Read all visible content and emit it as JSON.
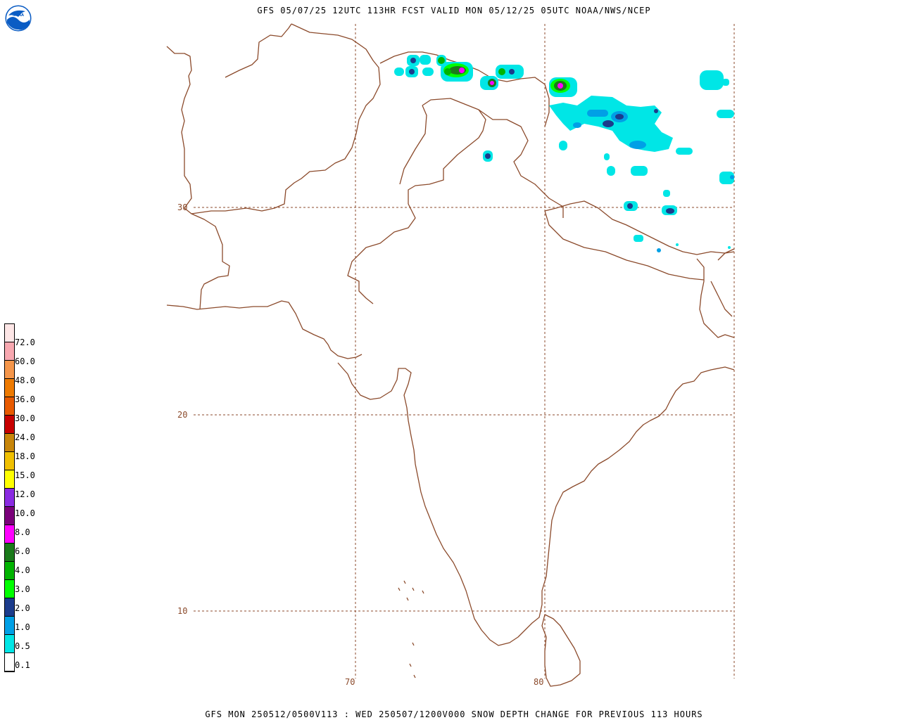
{
  "header": {
    "title": "GFS 05/07/25 12UTC 113HR FCST VALID MON 05/12/25 05UTC NOAA/NWS/NCEP",
    "logo_text": "NOAA"
  },
  "footer": {
    "text": "GFS MON 250512/0500V113 : WED 250507/1200V000 SNOW DEPTH CHANGE FOR PREVIOUS 113 HOURS"
  },
  "map": {
    "lat_labels": [
      "30",
      "20",
      "10"
    ],
    "lon_labels": [
      "70",
      "80"
    ],
    "colors": {
      "border": "#8b4a2b",
      "grid": "#8b4a2b"
    }
  },
  "legend": {
    "labels": [
      "72.0",
      "60.0",
      "48.0",
      "36.0",
      "30.0",
      "24.0",
      "18.0",
      "15.0",
      "12.0",
      "10.0",
      "8.0",
      "6.0",
      "4.0",
      "3.0",
      "2.0",
      "1.0",
      "0.5",
      "0.1"
    ],
    "colors": [
      "#fde6e6",
      "#f8a8b0",
      "#f5964a",
      "#ee7a00",
      "#e85a00",
      "#c80000",
      "#c8860a",
      "#f0c000",
      "#ffff00",
      "#8a2be2",
      "#7a007a",
      "#ff00ff",
      "#1a7a1a",
      "#00b400",
      "#00ff00",
      "#1c3c8c",
      "#00a0e6",
      "#00e6e6",
      "#ffffff"
    ]
  }
}
